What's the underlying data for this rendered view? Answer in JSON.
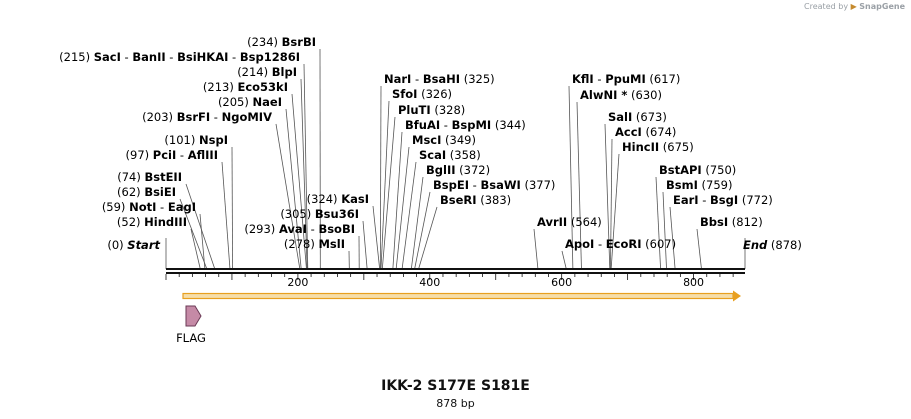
{
  "credit": {
    "prefix": "Created by",
    "brand": "SnapGene"
  },
  "title": "IKK-2 S177E S181E",
  "length_label": "878 bp",
  "sequence_length": 878,
  "ticks": [
    200,
    400,
    600,
    800
  ],
  "feature_label": "FLAG",
  "colors": {
    "arrow": "#e8a020",
    "arrow_fill": "#f6deaa",
    "flag": "#c58aa6",
    "line": "#555555"
  },
  "labels": [
    {
      "line": "(0) |Start",
      "italic": true,
      "sites": [
        0
      ]
    },
    {
      "line": "(52) |HindIII",
      "sites": [
        52
      ]
    },
    {
      "line": "(59) |NotI| - |EagI",
      "sites": [
        59
      ]
    },
    {
      "line": "(62) |BsiEI",
      "sites": [
        62
      ]
    },
    {
      "line": "(74) |BstEII",
      "sites": [
        74
      ]
    },
    {
      "line": "(97) |PciI| - |AflIII",
      "sites": [
        97
      ]
    },
    {
      "line": "(101) |NspI",
      "sites": [
        101
      ]
    },
    {
      "line": "(203) |BsrFI| - |NgoMIV",
      "sites": [
        203
      ]
    },
    {
      "line": "(205) |NaeI",
      "sites": [
        205
      ]
    },
    {
      "line": "(213) |Eco53kI",
      "sites": [
        213
      ]
    },
    {
      "line": "(214) |BlpI",
      "sites": [
        214
      ]
    },
    {
      "line": "(215) |SacI| - |BanII| - |BsiHKAI| - |Bsp1286I",
      "sites": [
        215
      ]
    },
    {
      "line": "(234) |BsrBI",
      "sites": [
        234
      ]
    },
    {
      "line": "(293) |AvaI| - |BsoBI",
      "sites": [
        293
      ]
    },
    {
      "line": "(305) |Bsu36I",
      "sites": [
        305
      ]
    },
    {
      "line": "(278) |MslI",
      "sites": [
        278
      ]
    },
    {
      "line": "(324) |KasI",
      "sites": [
        324
      ]
    },
    {
      "line": "|NarI| - |BsaHI|  (325)",
      "sites": [
        325
      ]
    },
    {
      "line": "|SfoI|  (326)",
      "sites": [
        326
      ]
    },
    {
      "line": "|PluTI|  (328)",
      "sites": [
        328
      ]
    },
    {
      "line": "|BfuAI| - |BspMI|  (344)",
      "sites": [
        344
      ]
    },
    {
      "line": "|MscI|  (349)",
      "sites": [
        349
      ]
    },
    {
      "line": "|ScaI|  (358)",
      "sites": [
        358
      ]
    },
    {
      "line": "|BglII|  (372)",
      "sites": [
        372
      ]
    },
    {
      "line": "|BspEI| - |BsaWI|  (377)",
      "sites": [
        377
      ]
    },
    {
      "line": "|BseRI|  (383)",
      "sites": [
        383
      ]
    },
    {
      "line": "|AvrII|  (564)",
      "sites": [
        564
      ]
    },
    {
      "line": "|KflI| - |PpuMI|  (617)",
      "sites": [
        617
      ]
    },
    {
      "line": "|AlwNI *|  (630)",
      "sites": [
        630
      ]
    },
    {
      "line": "|ApoI| - |EcoRI|  (607)",
      "sites": [
        607
      ]
    },
    {
      "line": "|SalI|  (673)",
      "sites": [
        673
      ]
    },
    {
      "line": "|AccI|  (674)",
      "sites": [
        674
      ]
    },
    {
      "line": "|HincII|  (675)",
      "sites": [
        675
      ]
    },
    {
      "line": "|BstAPI|  (750)",
      "sites": [
        750
      ]
    },
    {
      "line": "|BsmI|  (759)",
      "sites": [
        759
      ]
    },
    {
      "line": "|EarI| - |BsgI|  (772)",
      "sites": [
        772
      ]
    },
    {
      "line": "|BbsI|  (812)",
      "sites": [
        812
      ]
    },
    {
      "line": "|End|  (878)",
      "italic": true,
      "sites": [
        878
      ]
    }
  ]
}
